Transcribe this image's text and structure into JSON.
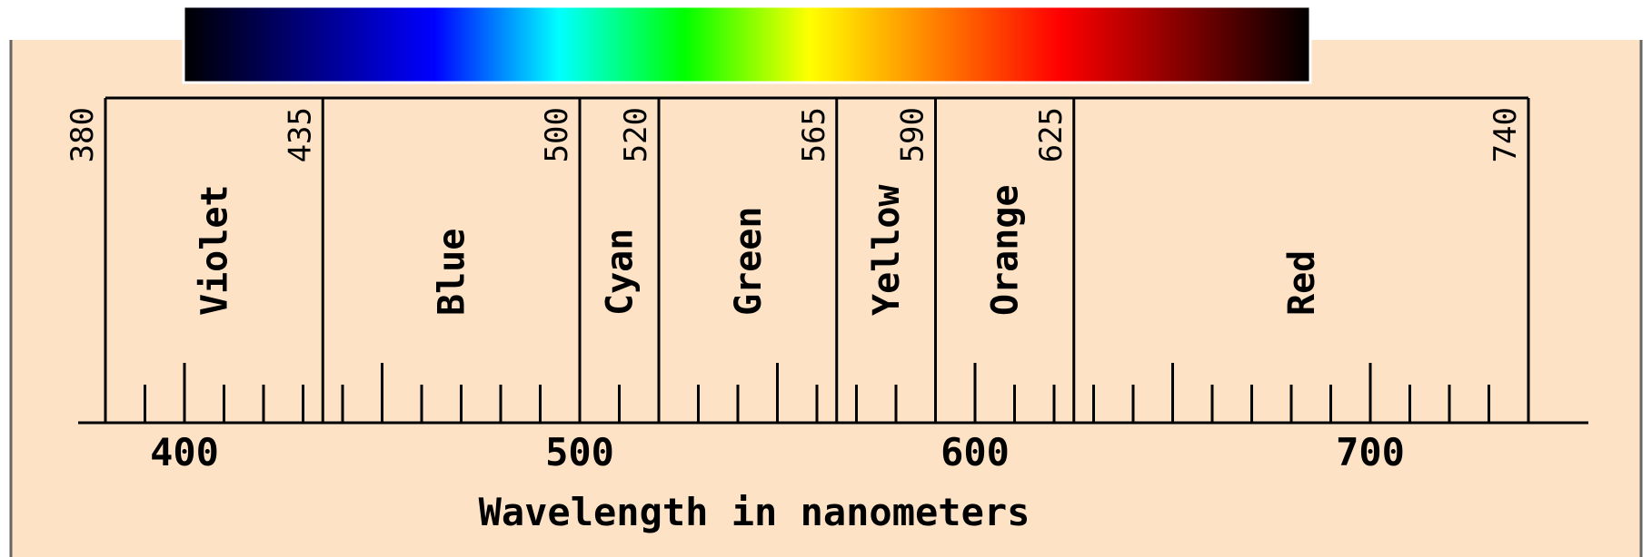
{
  "colors": {
    "panel_background": "#FDE2C6",
    "line": "#000000",
    "spectrum_gradient": [
      "#000000",
      "#000080",
      "#0000FF",
      "#00FFFF",
      "#00FF00",
      "#FFFF00",
      "#FF8000",
      "#FF0000",
      "#800000",
      "#000000"
    ]
  },
  "axis": {
    "label": "Wavelength in nanometers",
    "min": 380,
    "max": 740,
    "major_ticks": [
      400,
      500,
      600,
      700
    ],
    "minor_tick_step": 10
  },
  "bands": [
    {
      "name": "Violet",
      "start": 380,
      "end": 435
    },
    {
      "name": "Blue",
      "start": 435,
      "end": 500
    },
    {
      "name": "Cyan",
      "start": 500,
      "end": 520
    },
    {
      "name": "Green",
      "start": 520,
      "end": 565
    },
    {
      "name": "Yellow",
      "start": 565,
      "end": 590
    },
    {
      "name": "Orange",
      "start": 590,
      "end": 625
    },
    {
      "name": "Red",
      "start": 625,
      "end": 740
    }
  ],
  "boundaries": [
    380,
    435,
    500,
    520,
    565,
    590,
    625,
    740
  ]
}
